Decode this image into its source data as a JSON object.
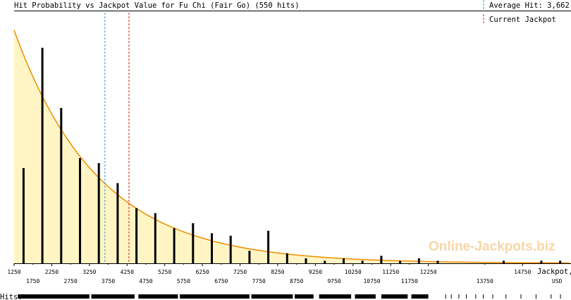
{
  "chart_data": {
    "type": "bar",
    "title": "Hit Probability vs Jackpot Value for Fu Chi (Fair Go) (550 hits)",
    "legend": {
      "average_label": "Average Hit: 3,662",
      "current_label": "Current Jackpot",
      "placement": "top-right"
    },
    "xlabel": "Jackpot,",
    "xunit": "USD",
    "xlim": [
      1250,
      16000
    ],
    "ylim": [
      0,
      1
    ],
    "average_hit": 3662,
    "current_jackpot": 4300,
    "ticks_upper": [
      "1250",
      "2250",
      "3250",
      "4250",
      "5250",
      "6250",
      "7250",
      "8250",
      "9250",
      "10250",
      "11250",
      "12250",
      "14750"
    ],
    "ticks_upper_values": [
      1250,
      2250,
      3250,
      4250,
      5250,
      6250,
      7250,
      8250,
      9250,
      10250,
      11250,
      12250,
      14750
    ],
    "ticks_lower": [
      "1750",
      "2750",
      "3750",
      "4750",
      "5750",
      "6750",
      "7750",
      "8750",
      "9750",
      "10750",
      "11750",
      "13750"
    ],
    "ticks_lower_values": [
      1750,
      2750,
      3750,
      4750,
      5750,
      6750,
      7750,
      8750,
      9750,
      10750,
      11750,
      13750
    ],
    "bars": [
      {
        "x": 1500,
        "value": 0.38
      },
      {
        "x": 2000,
        "value": 0.86
      },
      {
        "x": 2500,
        "value": 0.62
      },
      {
        "x": 3000,
        "value": 0.42
      },
      {
        "x": 3500,
        "value": 0.4
      },
      {
        "x": 4000,
        "value": 0.32
      },
      {
        "x": 4500,
        "value": 0.22
      },
      {
        "x": 5000,
        "value": 0.2
      },
      {
        "x": 5500,
        "value": 0.14
      },
      {
        "x": 6000,
        "value": 0.16
      },
      {
        "x": 6500,
        "value": 0.12
      },
      {
        "x": 7000,
        "value": 0.11
      },
      {
        "x": 7500,
        "value": 0.05
      },
      {
        "x": 8000,
        "value": 0.13
      },
      {
        "x": 8500,
        "value": 0.04
      },
      {
        "x": 9000,
        "value": 0.02
      },
      {
        "x": 9500,
        "value": 0.01
      },
      {
        "x": 10000,
        "value": 0.02
      },
      {
        "x": 10500,
        "value": 0.01
      },
      {
        "x": 11000,
        "value": 0.03
      },
      {
        "x": 11500,
        "value": 0.01
      },
      {
        "x": 12000,
        "value": 0.02
      },
      {
        "x": 12500,
        "value": 0.01
      },
      {
        "x": 14250,
        "value": 0.01
      },
      {
        "x": 15250,
        "value": 0.01
      },
      {
        "x": 15750,
        "value": 0.01
      }
    ],
    "curve": {
      "x0": 1250,
      "y0": 0.93,
      "decay": 0.000445,
      "x_end": 16000,
      "stroke": "#f08c00",
      "fill": "#fff5c4"
    },
    "hits_label": "Hits:",
    "hits_segments": [
      [
        1350,
        3250
      ],
      [
        3300,
        4450
      ],
      [
        4550,
        5600
      ],
      [
        5650,
        7500
      ],
      [
        7550,
        8650
      ],
      [
        8700,
        9200
      ],
      [
        9350,
        10200
      ],
      [
        10300,
        10850
      ],
      [
        11000,
        11700
      ],
      [
        11800,
        12250
      ]
    ],
    "hits_ticks": [
      12700,
      12850,
      13050,
      13250,
      13500,
      13700,
      13950,
      14300,
      14700,
      15100,
      15500,
      15750
    ],
    "watermark": "Online-Jackpots.biz",
    "colors": {
      "average_line": "#3399cc",
      "current_line": "#cc2222",
      "bar": "#000000",
      "watermark": "#f6d7a6"
    }
  }
}
